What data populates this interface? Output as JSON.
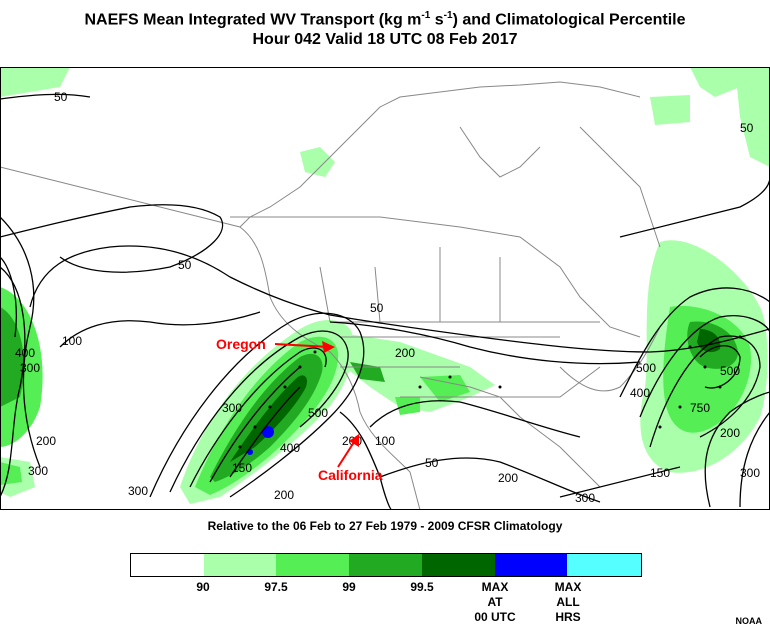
{
  "title": {
    "line1_pre": "NAEFS Mean Integrated WV Transport (kg m",
    "sup1": "-1",
    "line1_mid": " s",
    "sup2": "-1",
    "line1_post": ") and Climatological Percentile",
    "line2": "Hour 042 Valid 18 UTC 08 Feb 2017"
  },
  "map": {
    "annotations": {
      "oregon": "Oregon",
      "california": "California"
    },
    "contour_labels": [
      "50",
      "50",
      "50",
      "50",
      "100",
      "200",
      "300",
      "400",
      "500",
      "400",
      "300",
      "200",
      "150",
      "200",
      "300",
      "300",
      "200",
      "100",
      "200",
      "400",
      "500",
      "750",
      "500",
      "200",
      "300",
      "150",
      "50",
      "300"
    ]
  },
  "caption": "Relative to the 06 Feb to 27 Feb 1979 - 2009 CFSR Climatology",
  "legend": {
    "colors": [
      "#ffffff",
      "#aaffaa",
      "#55ee55",
      "#22aa22",
      "#006600",
      "#0000ff",
      "#55ffff"
    ],
    "labels": [
      "90",
      "97.5",
      "99",
      "99.5",
      "MAX\nAT\n00 UTC",
      "MAX\nALL\nHRS"
    ]
  },
  "credit": "NOAA"
}
